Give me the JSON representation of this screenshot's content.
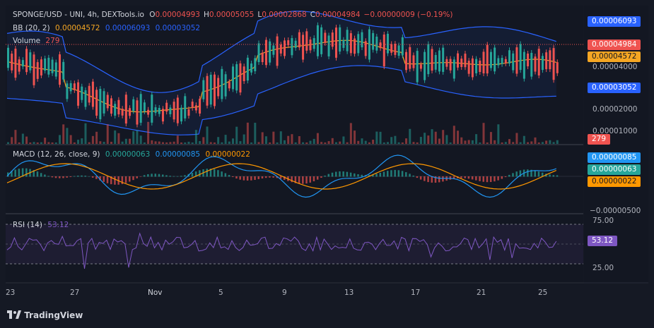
{
  "chart_data": {
    "type": "candlestick",
    "symbol_line": {
      "title": "SPONGE/USD - UNI, 4h, DEXTools.io",
      "open_label": "O",
      "open": "0.00004993",
      "high_label": "H",
      "high": "0.00005055",
      "low_label": "L",
      "low": "0.00002868",
      "close_label": "C",
      "close": "0.00004984",
      "change": "−0.00000009 (−0.19%)"
    },
    "bb": {
      "label": "BB (20, 2)",
      "basis": "0.00004572",
      "upper": "0.00006093",
      "lower": "0.00003052"
    },
    "volume": {
      "label": "Volume",
      "value": "279"
    },
    "price_axis": [
      "0.00004000",
      "0.00002000",
      "0.00001000"
    ],
    "price_tags": {
      "upper": "0.00006093",
      "last": "0.00004984",
      "basis": "0.00004572",
      "lower": "0.00003052",
      "volume": "279"
    },
    "macd": {
      "label": "MACD (12, 26, close, 9)",
      "histogram": "0.00000063",
      "macd": "0.00000085",
      "signal": "0.00000022",
      "axis_low": "−0.00000500"
    },
    "rsi": {
      "label": "RSI (14)",
      "value": "53.12",
      "axis": [
        "75.00",
        "25.00"
      ]
    },
    "x_ticks": [
      "23",
      "27",
      "Nov",
      "5",
      "9",
      "13",
      "17",
      "21",
      "25"
    ],
    "colors": {
      "up": "#26a69a",
      "down": "#ef5350",
      "bb": "#2962ff",
      "basis": "#f5a623",
      "rsi": "#7e57c2",
      "signal": "#ff9800",
      "macd": "#2196f3"
    }
  },
  "brand": {
    "name": "TradingView"
  }
}
